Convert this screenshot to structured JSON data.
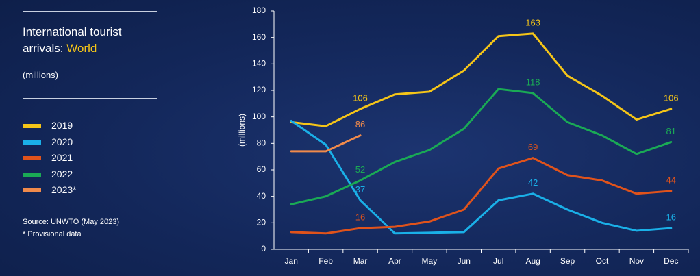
{
  "chart_data": {
    "type": "line",
    "title": "International tourist arrivals:",
    "title_highlight": "World",
    "subtitle": "(millions)",
    "y_label": "(millions)",
    "notes": [
      "Source: UNWTO (May 2023)",
      "* Provisional data"
    ],
    "categories": [
      "Jan",
      "Feb",
      "Mar",
      "Apr",
      "May",
      "Jun",
      "Jul",
      "Aug",
      "Sep",
      "Oct",
      "Nov",
      "Dec"
    ],
    "ylim": [
      0,
      180
    ],
    "yticks": [
      0,
      20,
      40,
      60,
      80,
      100,
      120,
      140,
      160,
      180
    ],
    "series": [
      {
        "name": "2019",
        "color": "#f5c518",
        "values": [
          96,
          93,
          106,
          117,
          119,
          135,
          161,
          163,
          131,
          116,
          98,
          106
        ],
        "value_labels": [
          null,
          null,
          "106",
          null,
          null,
          null,
          null,
          "163",
          null,
          null,
          null,
          "106"
        ]
      },
      {
        "name": "2020",
        "color": "#1ab0e8",
        "values": [
          97,
          79,
          37,
          12,
          12.5,
          13,
          37,
          42,
          30,
          20,
          14,
          16
        ],
        "value_labels": [
          null,
          null,
          "37",
          null,
          null,
          null,
          null,
          "42",
          null,
          null,
          null,
          "16"
        ]
      },
      {
        "name": "2021",
        "color": "#e0531b",
        "values": [
          13,
          12,
          16,
          17,
          21,
          30,
          61,
          69,
          56,
          52,
          42,
          44
        ],
        "value_labels": [
          null,
          null,
          "16",
          null,
          null,
          null,
          null,
          "69",
          null,
          null,
          null,
          "44"
        ]
      },
      {
        "name": "2022",
        "color": "#1aaa55",
        "values": [
          34,
          40,
          52,
          66,
          75,
          91,
          121,
          118,
          96,
          86,
          72,
          81
        ],
        "value_labels": [
          null,
          null,
          "52",
          null,
          null,
          null,
          null,
          "118",
          null,
          null,
          null,
          "81"
        ]
      },
      {
        "name": "2023*",
        "color": "#f08a4b",
        "values": [
          74,
          74,
          86,
          null,
          null,
          null,
          null,
          null,
          null,
          null,
          null,
          null
        ],
        "value_labels": [
          null,
          null,
          "86",
          null,
          null,
          null,
          null,
          null,
          null,
          null,
          null,
          null
        ]
      }
    ]
  }
}
